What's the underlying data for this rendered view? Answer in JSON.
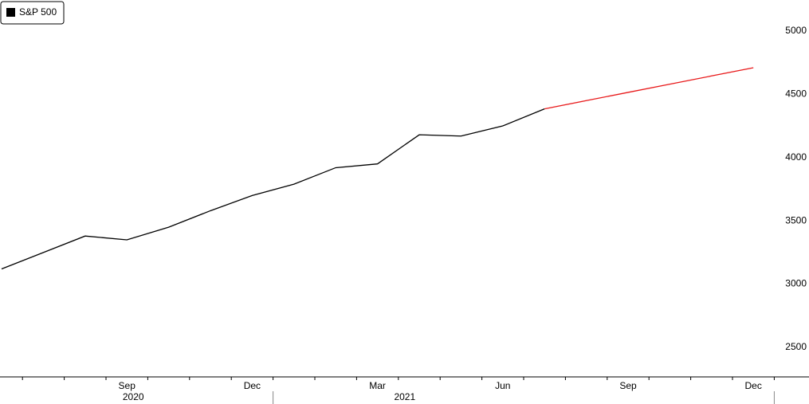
{
  "chart_data": {
    "type": "line",
    "categories": [
      null,
      null,
      null,
      "Sep",
      null,
      null,
      "Dec",
      null,
      null,
      "Mar",
      null,
      null,
      "Jun",
      null,
      null,
      "Sep",
      null,
      null,
      "Dec"
    ],
    "years": [
      "2020",
      "2021"
    ],
    "series": [
      {
        "name": "S&P 500",
        "color": "#000000",
        "values": [
          3120,
          3250,
          3380,
          3350,
          3450,
          3580,
          3700,
          3790,
          3920,
          3950,
          4180,
          4170,
          4250,
          4385,
          null,
          null,
          null,
          null,
          null
        ]
      },
      {
        "color": "#e8191a",
        "values": [
          null,
          null,
          null,
          null,
          null,
          null,
          null,
          null,
          null,
          null,
          null,
          null,
          null,
          4385,
          4450,
          4515,
          4580,
          4645,
          4710
        ]
      }
    ],
    "ylim": [
      2267,
      5245
    ],
    "yticks": [
      2500,
      3000,
      3500,
      4000,
      4500,
      5000
    ],
    "legend": "top-left"
  }
}
